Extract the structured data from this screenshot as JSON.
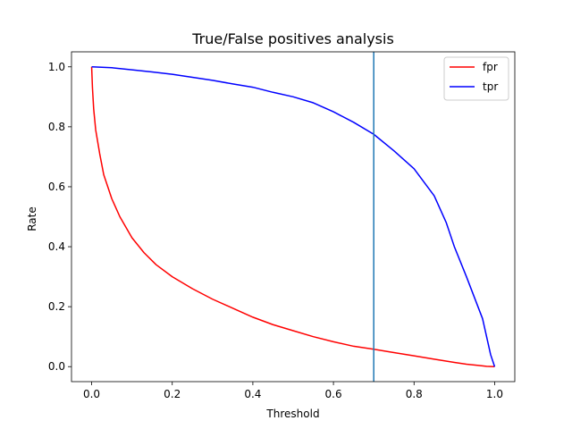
{
  "chart_data": {
    "type": "line",
    "title": "True/False positives analysis",
    "xlabel": "Threshold",
    "ylabel": "Rate",
    "xlim": [
      -0.05,
      1.05
    ],
    "ylim": [
      -0.05,
      1.05
    ],
    "xticks": [
      0.0,
      0.2,
      0.4,
      0.6,
      0.8,
      1.0
    ],
    "xtick_labels": [
      "0.0",
      "0.2",
      "0.4",
      "0.6",
      "0.8",
      "1.0"
    ],
    "yticks": [
      0.0,
      0.2,
      0.4,
      0.6,
      0.8,
      1.0
    ],
    "ytick_labels": [
      "0.0",
      "0.2",
      "0.4",
      "0.6",
      "0.8",
      "1.0"
    ],
    "grid": false,
    "legend_position": "top-right",
    "vline": {
      "x": 0.7,
      "color": "#1f77b4"
    },
    "series": [
      {
        "name": "fpr",
        "color": "#ff0000",
        "x": [
          0.0,
          0.002,
          0.005,
          0.01,
          0.02,
          0.03,
          0.05,
          0.07,
          0.1,
          0.13,
          0.16,
          0.2,
          0.25,
          0.3,
          0.35,
          0.4,
          0.45,
          0.5,
          0.55,
          0.6,
          0.65,
          0.7,
          0.75,
          0.8,
          0.85,
          0.9,
          0.93,
          0.96,
          0.98,
          1.0
        ],
        "y": [
          1.0,
          0.93,
          0.86,
          0.79,
          0.71,
          0.64,
          0.56,
          0.5,
          0.43,
          0.38,
          0.34,
          0.3,
          0.26,
          0.225,
          0.195,
          0.165,
          0.14,
          0.12,
          0.1,
          0.083,
          0.068,
          0.058,
          0.047,
          0.036,
          0.025,
          0.014,
          0.008,
          0.004,
          0.001,
          0.0
        ]
      },
      {
        "name": "tpr",
        "color": "#0000ff",
        "x": [
          0.0,
          0.05,
          0.1,
          0.15,
          0.2,
          0.25,
          0.3,
          0.35,
          0.4,
          0.45,
          0.5,
          0.55,
          0.6,
          0.65,
          0.7,
          0.75,
          0.8,
          0.85,
          0.88,
          0.9,
          0.93,
          0.95,
          0.97,
          0.98,
          0.99,
          1.0
        ],
        "y": [
          1.0,
          0.997,
          0.99,
          0.983,
          0.975,
          0.965,
          0.955,
          0.943,
          0.932,
          0.915,
          0.9,
          0.88,
          0.85,
          0.815,
          0.775,
          0.72,
          0.66,
          0.57,
          0.48,
          0.4,
          0.3,
          0.23,
          0.16,
          0.1,
          0.04,
          0.0
        ]
      }
    ]
  }
}
